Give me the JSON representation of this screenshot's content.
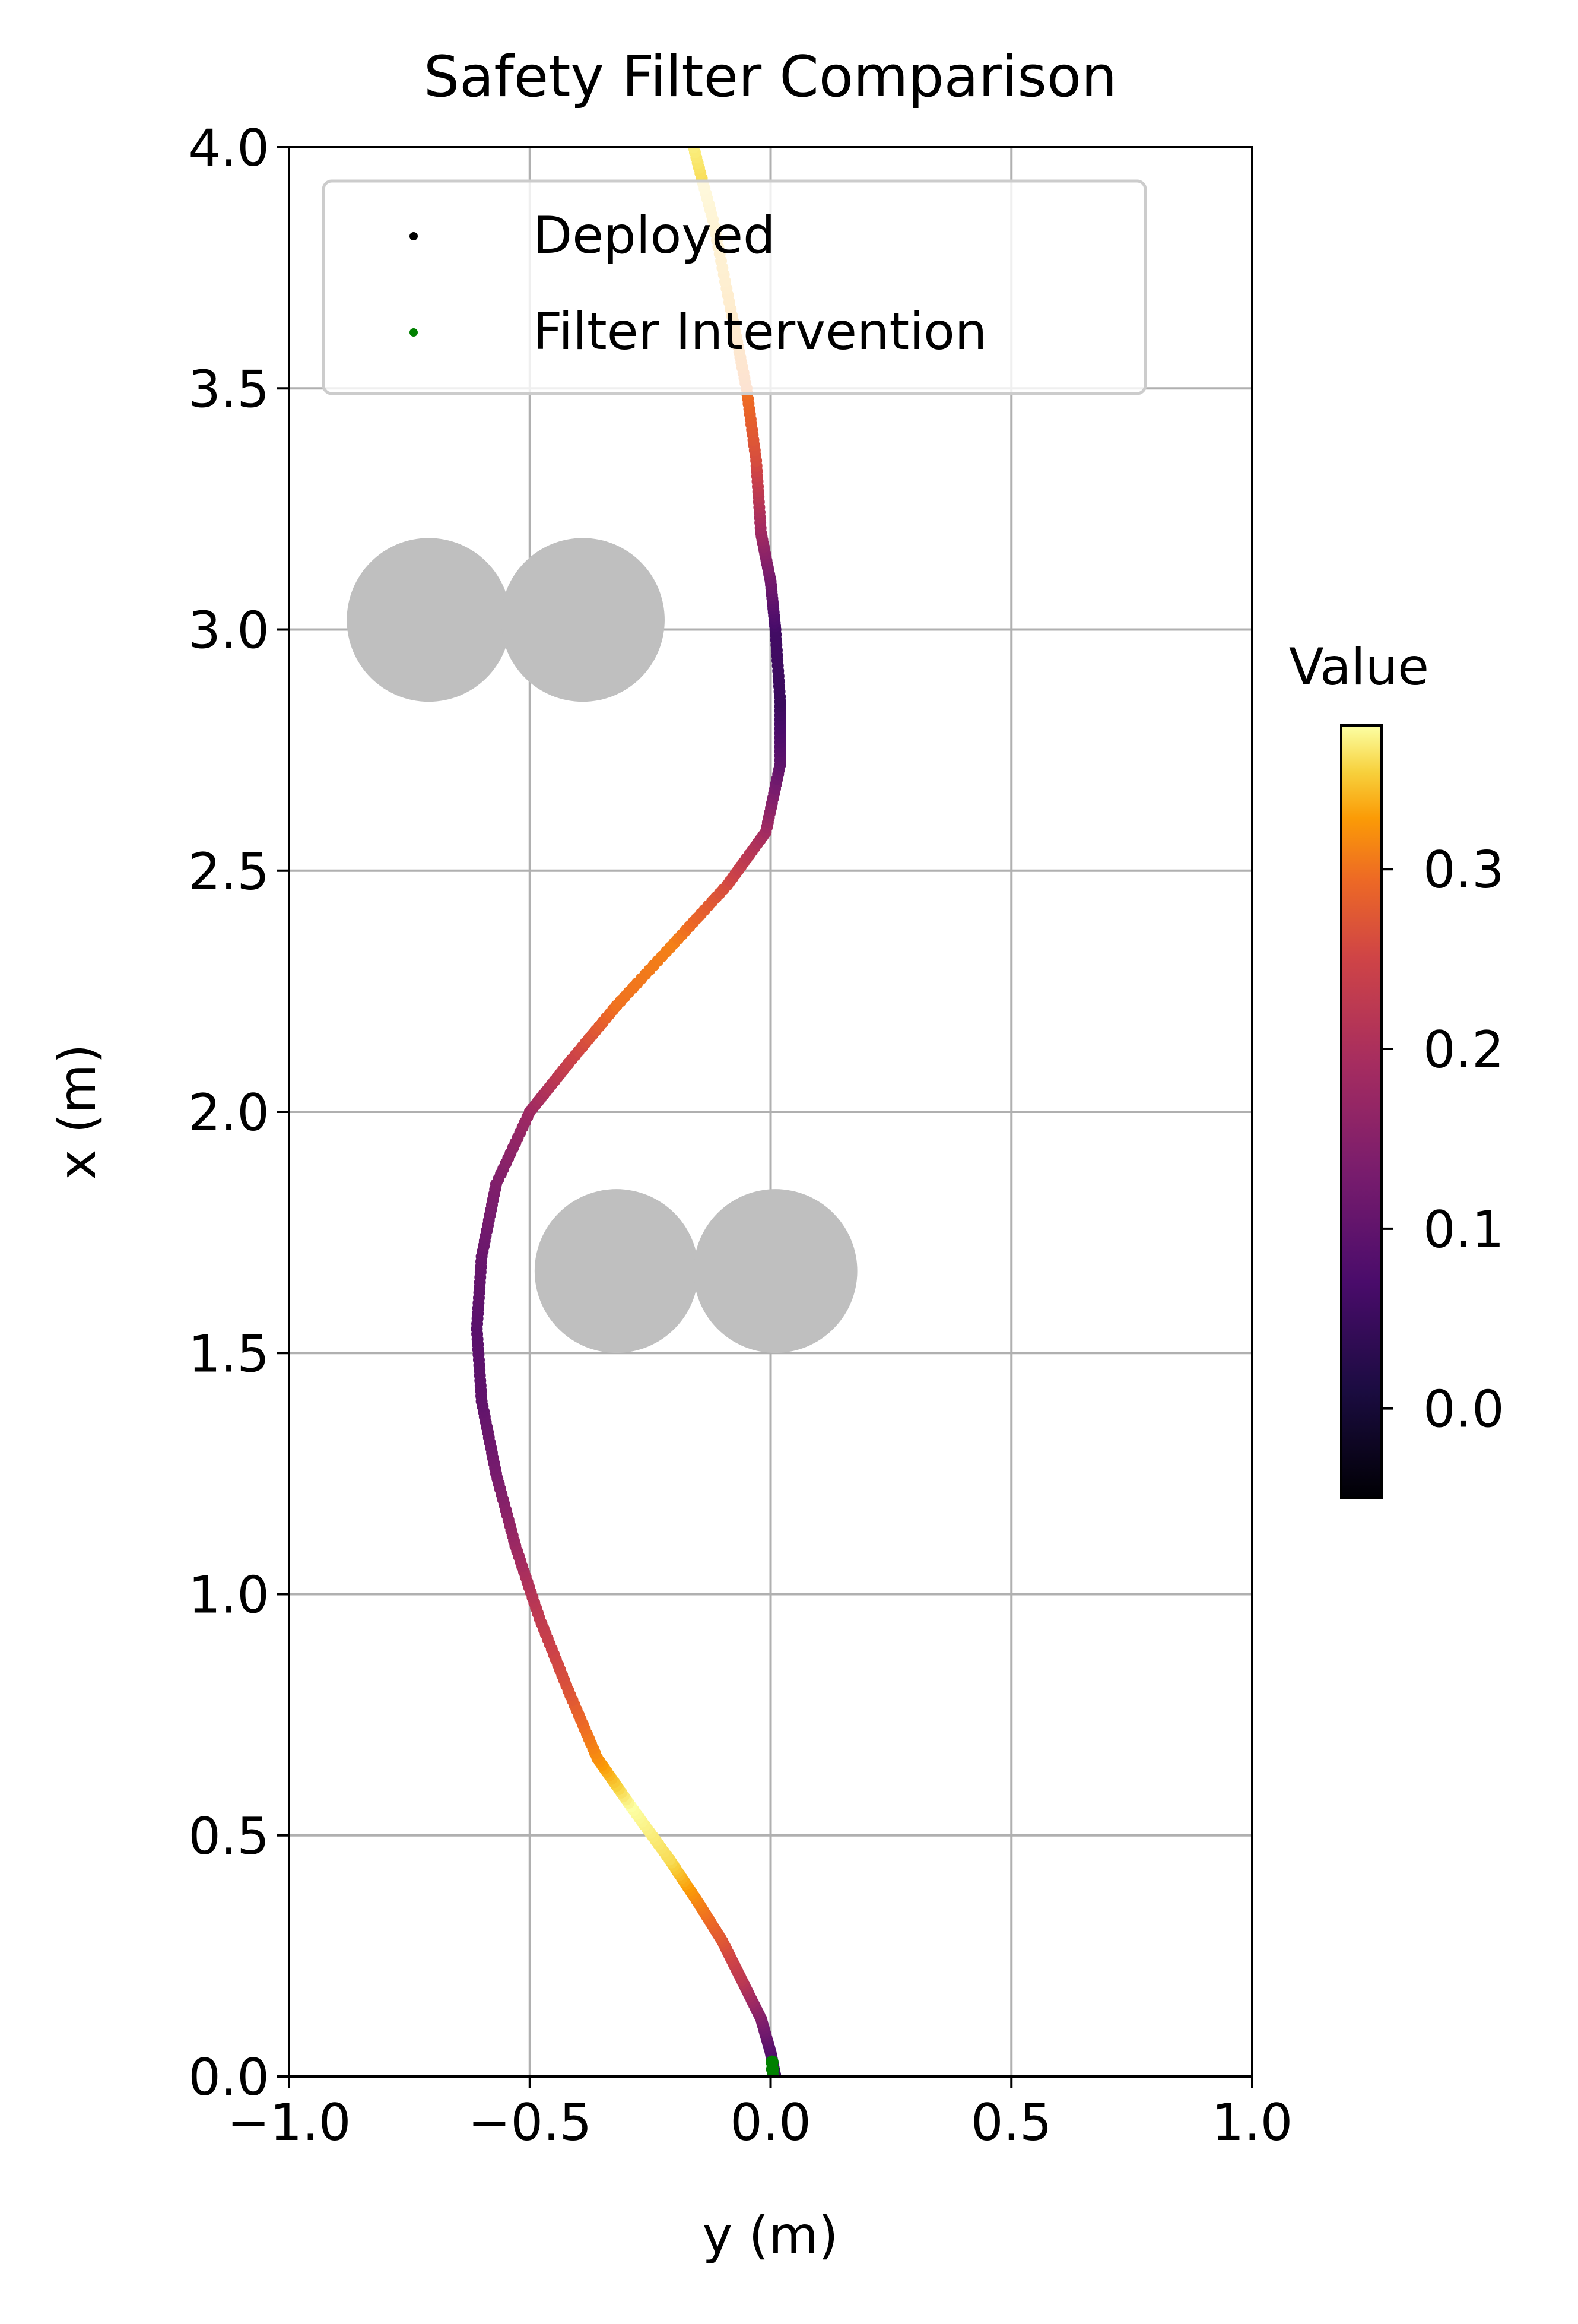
{
  "chart_data": {
    "type": "scatter",
    "title": "Safety Filter Comparison",
    "xlabel": "y (m)",
    "ylabel": "x (m)",
    "xlim": [
      -1.0,
      1.0
    ],
    "ylim": [
      0.0,
      4.0
    ],
    "xticks": [
      -1.0,
      -0.5,
      0.0,
      0.5,
      1.0
    ],
    "xtick_labels": [
      "−1.0",
      "−0.5",
      "0.0",
      "0.5",
      "1.0"
    ],
    "yticks": [
      0.0,
      0.5,
      1.0,
      1.5,
      2.0,
      2.5,
      3.0,
      3.5,
      4.0
    ],
    "ytick_labels": [
      "0.0",
      "0.5",
      "1.0",
      "1.5",
      "2.0",
      "2.5",
      "3.0",
      "3.5",
      "4.0"
    ],
    "grid": true,
    "legend": {
      "placement": "upper-left",
      "entries": [
        {
          "label": "Deployed",
          "color": "#000000"
        },
        {
          "label": "Filter Intervention",
          "color": "#008000"
        }
      ]
    },
    "obstacles": [
      {
        "y": -0.71,
        "x": 3.02,
        "r": 0.17
      },
      {
        "y": -0.39,
        "x": 3.02,
        "r": 0.17
      },
      {
        "y": -0.32,
        "x": 1.67,
        "r": 0.17
      },
      {
        "y": 0.01,
        "x": 1.67,
        "r": 0.17
      }
    ],
    "obstacle_color": "#bfbfbf",
    "trajectory": {
      "colormap": "inferno",
      "points": [
        {
          "y": 0.01,
          "x": 0.0,
          "value": 0.05
        },
        {
          "y": 0.0,
          "x": 0.05,
          "value": 0.08
        },
        {
          "y": -0.02,
          "x": 0.12,
          "value": 0.14
        },
        {
          "y": -0.06,
          "x": 0.2,
          "value": 0.22
        },
        {
          "y": -0.1,
          "x": 0.28,
          "value": 0.27
        },
        {
          "y": -0.15,
          "x": 0.36,
          "value": 0.31
        },
        {
          "y": -0.21,
          "x": 0.45,
          "value": 0.36
        },
        {
          "y": -0.29,
          "x": 0.56,
          "value": 0.38
        },
        {
          "y": -0.36,
          "x": 0.66,
          "value": 0.32
        },
        {
          "y": -0.42,
          "x": 0.8,
          "value": 0.27
        },
        {
          "y": -0.48,
          "x": 0.95,
          "value": 0.23
        },
        {
          "y": -0.53,
          "x": 1.1,
          "value": 0.18
        },
        {
          "y": -0.57,
          "x": 1.25,
          "value": 0.13
        },
        {
          "y": -0.6,
          "x": 1.4,
          "value": 0.1
        },
        {
          "y": -0.61,
          "x": 1.55,
          "value": 0.09
        },
        {
          "y": -0.6,
          "x": 1.7,
          "value": 0.11
        },
        {
          "y": -0.57,
          "x": 1.85,
          "value": 0.14
        },
        {
          "y": -0.5,
          "x": 2.0,
          "value": 0.18
        },
        {
          "y": -0.42,
          "x": 2.1,
          "value": 0.24
        },
        {
          "y": -0.32,
          "x": 2.22,
          "value": 0.3
        },
        {
          "y": -0.2,
          "x": 2.35,
          "value": 0.31
        },
        {
          "y": -0.09,
          "x": 2.47,
          "value": 0.26
        },
        {
          "y": -0.01,
          "x": 2.58,
          "value": 0.19
        },
        {
          "y": 0.02,
          "x": 2.72,
          "value": 0.1
        },
        {
          "y": 0.02,
          "x": 2.85,
          "value": 0.05
        },
        {
          "y": 0.01,
          "x": 3.0,
          "value": 0.06
        },
        {
          "y": 0.0,
          "x": 3.1,
          "value": 0.12
        },
        {
          "y": -0.02,
          "x": 3.2,
          "value": 0.18
        },
        {
          "y": -0.03,
          "x": 3.35,
          "value": 0.26
        },
        {
          "y": -0.05,
          "x": 3.5,
          "value": 0.3
        },
        {
          "y": -0.08,
          "x": 3.65,
          "value": 0.33
        },
        {
          "y": -0.12,
          "x": 3.85,
          "value": 0.35
        },
        {
          "y": -0.16,
          "x": 4.0,
          "value": 0.37
        }
      ]
    },
    "intervention_points": [
      {
        "y": 0.005,
        "x": 0.0
      },
      {
        "y": 0.004,
        "x": 0.015
      },
      {
        "y": 0.003,
        "x": 0.03
      }
    ],
    "colorbar": {
      "title": "Value",
      "range": [
        -0.05,
        0.38
      ],
      "ticks": [
        0.0,
        0.1,
        0.2,
        0.3
      ],
      "tick_labels": [
        "0.0",
        "0.1",
        "0.2",
        "0.3"
      ]
    }
  }
}
